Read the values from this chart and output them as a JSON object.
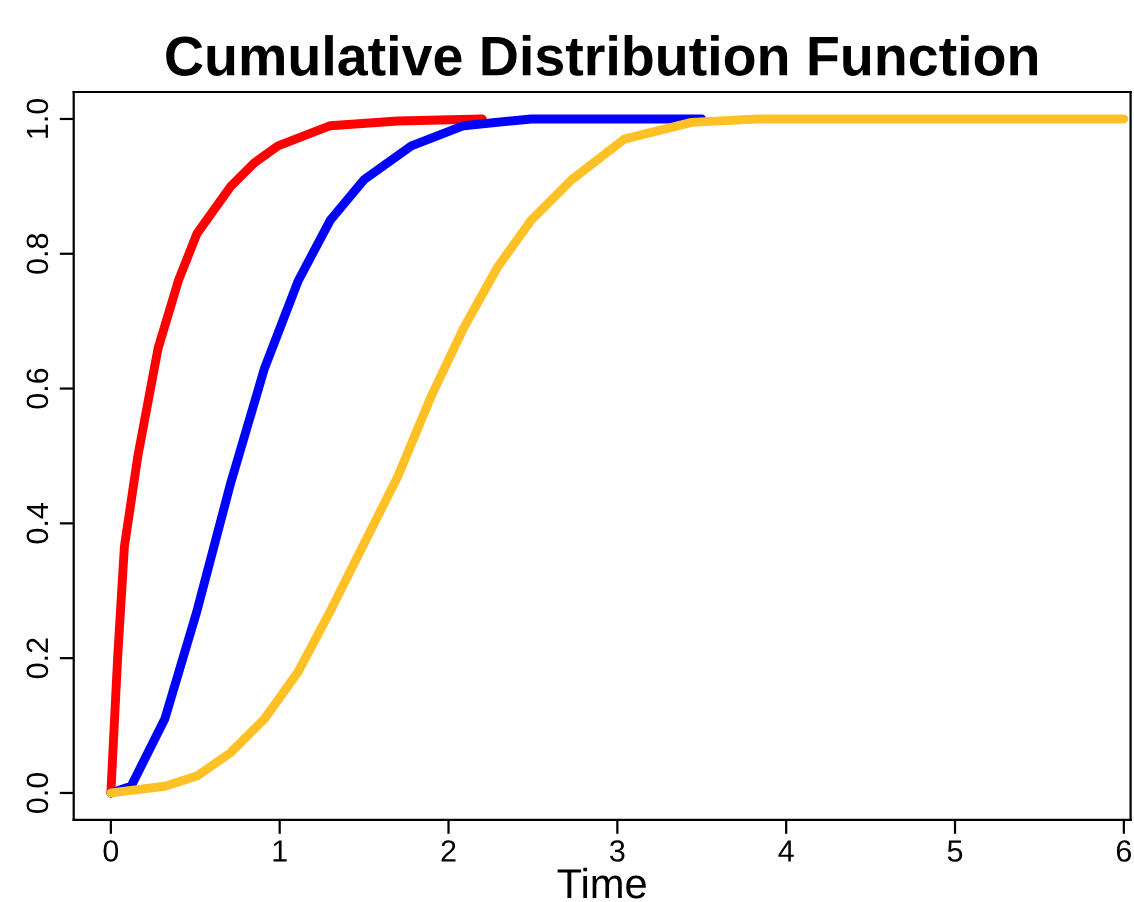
{
  "chart_data": {
    "type": "line",
    "title": "Cumulative Distribution Function",
    "xlabel": "Time",
    "xlim": [
      -0.22,
      6.04
    ],
    "ylim": [
      -0.04,
      1.04
    ],
    "xticks": [
      0,
      1,
      2,
      3,
      4,
      5,
      6
    ],
    "yticks": [
      {
        "value": 0,
        "label": "0.0"
      },
      {
        "value": 0.2,
        "label": "0.2"
      },
      {
        "value": 0.4,
        "label": "0.4"
      },
      {
        "value": 0.6,
        "label": "0.6"
      },
      {
        "value": 0.8,
        "label": "0.8"
      },
      {
        "value": 1,
        "label": "1.0"
      }
    ],
    "grid": false,
    "legend": false,
    "line_style": "solid",
    "marker": "none",
    "series": [
      {
        "color": "#ff0000",
        "x": [
          0,
          0.04,
          0.08,
          0.16,
          0.28,
          0.4,
          0.51,
          0.71,
          0.85,
          0.99,
          1.3,
          1.7,
          2.2
        ],
        "values": [
          0,
          0.2,
          0.365,
          0.5,
          0.66,
          0.76,
          0.83,
          0.9,
          0.935,
          0.96,
          0.99,
          0.997,
          1
        ]
      },
      {
        "color": "#0000ff",
        "x": [
          0,
          0.12,
          0.32,
          0.51,
          0.71,
          0.91,
          1.11,
          1.3,
          1.5,
          1.78,
          2.09,
          2.49,
          3,
          3.5
        ],
        "values": [
          0,
          0.01,
          0.11,
          0.27,
          0.46,
          0.63,
          0.76,
          0.85,
          0.91,
          0.96,
          0.99,
          1,
          1,
          1
        ]
      },
      {
        "color": "#ffc125",
        "x": [
          0,
          0.32,
          0.51,
          0.71,
          0.91,
          1.11,
          1.3,
          1.5,
          1.7,
          1.9,
          2.09,
          2.29,
          2.49,
          2.73,
          3.04,
          3.44,
          3.83,
          4.5,
          5,
          6
        ],
        "values": [
          0,
          0.01,
          0.025,
          0.06,
          0.11,
          0.18,
          0.27,
          0.37,
          0.47,
          0.59,
          0.69,
          0.78,
          0.85,
          0.91,
          0.97,
          0.995,
          1,
          1,
          1,
          1
        ]
      }
    ]
  }
}
